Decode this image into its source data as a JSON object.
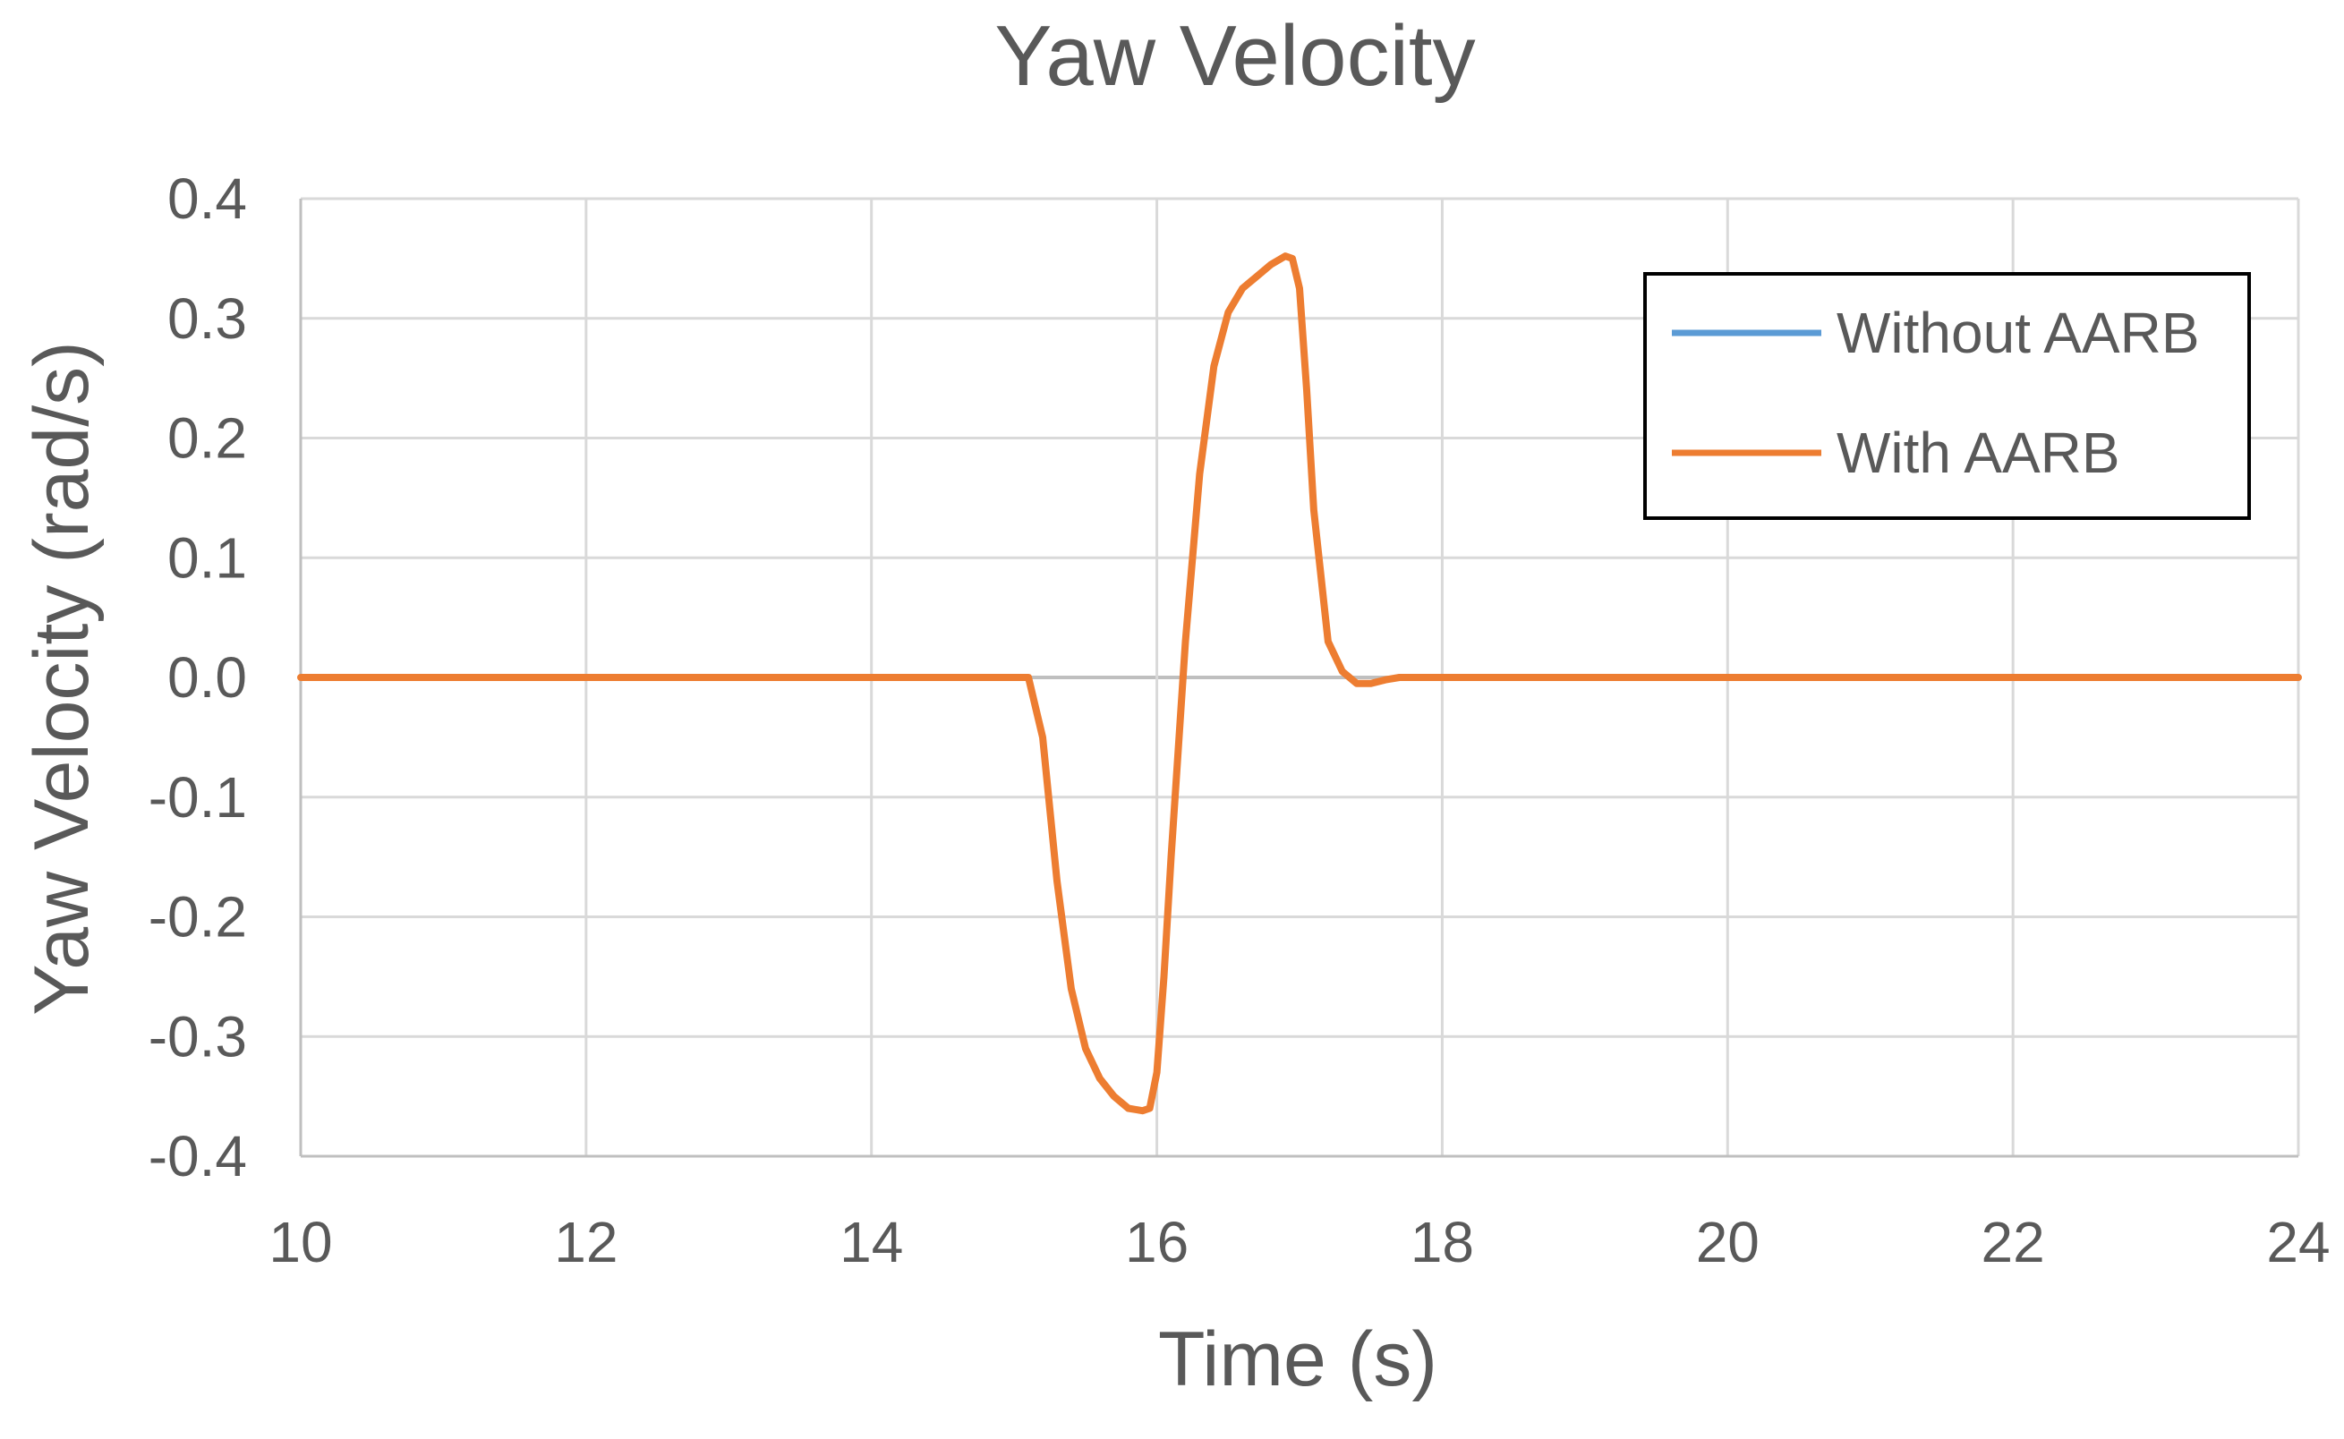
{
  "chart_data": {
    "type": "line",
    "title": "Yaw Velocity",
    "xlabel": "Time (s)",
    "ylabel": "Yaw Velocity (rad/s)",
    "xlim": [
      10,
      24
    ],
    "ylim": [
      -0.4,
      0.4
    ],
    "x_ticks": [
      10,
      12,
      14,
      16,
      18,
      20,
      22,
      24
    ],
    "y_ticks": [
      -0.4,
      -0.3,
      -0.2,
      -0.1,
      0.0,
      0.1,
      0.2,
      0.3,
      0.4
    ],
    "x_tick_labels": [
      "10",
      "12",
      "14",
      "16",
      "18",
      "20",
      "22",
      "24"
    ],
    "y_tick_labels": [
      "-0.4",
      "-0.3",
      "-0.2",
      "-0.1",
      "0.0",
      "0.1",
      "0.2",
      "0.3",
      "0.4"
    ],
    "grid": true,
    "legend_position": "top-right",
    "series": [
      {
        "name": "Without AARB",
        "color": "#5B9BD5",
        "x": [
          10,
          15,
          15.1,
          15.2,
          15.3,
          15.4,
          15.5,
          15.6,
          15.7,
          15.8,
          15.9,
          15.95,
          16.0,
          16.05,
          16.1,
          16.2,
          16.3,
          16.4,
          16.5,
          16.6,
          16.7,
          16.8,
          16.9,
          16.95,
          17.0,
          17.05,
          17.1,
          17.2,
          17.3,
          17.4,
          17.5,
          17.6,
          17.7,
          18,
          24
        ],
        "y": [
          0,
          0,
          0,
          -0.05,
          -0.17,
          -0.26,
          -0.31,
          -0.335,
          -0.35,
          -0.36,
          -0.362,
          -0.36,
          -0.33,
          -0.25,
          -0.15,
          0.03,
          0.17,
          0.26,
          0.305,
          0.325,
          0.335,
          0.345,
          0.352,
          0.35,
          0.325,
          0.24,
          0.14,
          0.03,
          0.005,
          -0.005,
          -0.005,
          -0.002,
          0,
          0,
          0
        ]
      },
      {
        "name": "With AARB",
        "color": "#ED7D31",
        "x": [
          10,
          15,
          15.1,
          15.2,
          15.3,
          15.4,
          15.5,
          15.6,
          15.7,
          15.8,
          15.9,
          15.95,
          16.0,
          16.05,
          16.1,
          16.2,
          16.3,
          16.4,
          16.5,
          16.6,
          16.7,
          16.8,
          16.9,
          16.95,
          17.0,
          17.05,
          17.1,
          17.2,
          17.3,
          17.4,
          17.5,
          17.6,
          17.7,
          18,
          24
        ],
        "y": [
          0,
          0,
          0,
          -0.05,
          -0.17,
          -0.26,
          -0.31,
          -0.335,
          -0.35,
          -0.36,
          -0.362,
          -0.36,
          -0.33,
          -0.25,
          -0.15,
          0.03,
          0.17,
          0.26,
          0.305,
          0.325,
          0.335,
          0.345,
          0.352,
          0.35,
          0.325,
          0.24,
          0.14,
          0.03,
          0.005,
          -0.005,
          -0.005,
          -0.002,
          0,
          0,
          0
        ]
      }
    ],
    "grid_color": "#D9D9D9",
    "axis_color": "#BFBFBF",
    "text_color": "#595959",
    "title_color": "#595959",
    "legend_border_color": "#000000"
  }
}
